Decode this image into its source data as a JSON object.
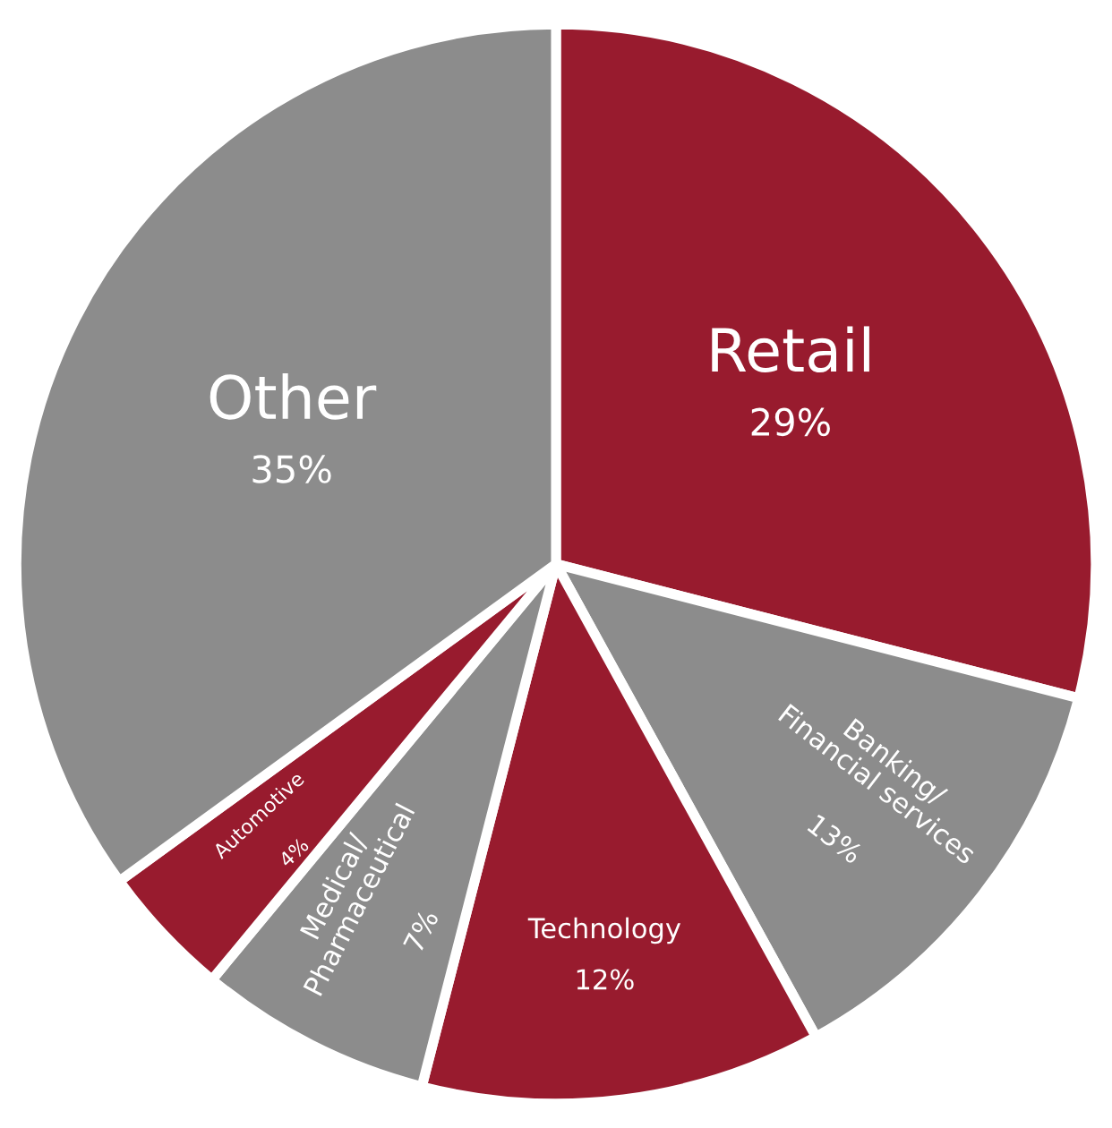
{
  "chart_data": {
    "type": "pie",
    "categories": [
      "Retail",
      "Banking/\nFinancial services",
      "Technology",
      "Medical/\nPharmaceutical",
      "Automotive",
      "Other"
    ],
    "values": [
      29,
      13,
      12,
      7,
      4,
      35
    ],
    "value_labels": [
      "29%",
      "13%",
      "12%",
      "7%",
      "4%",
      "35%"
    ],
    "colors": [
      "#981b2e",
      "#8c8c8c",
      "#981b2e",
      "#8c8c8c",
      "#981b2e",
      "#8c8c8c"
    ]
  }
}
